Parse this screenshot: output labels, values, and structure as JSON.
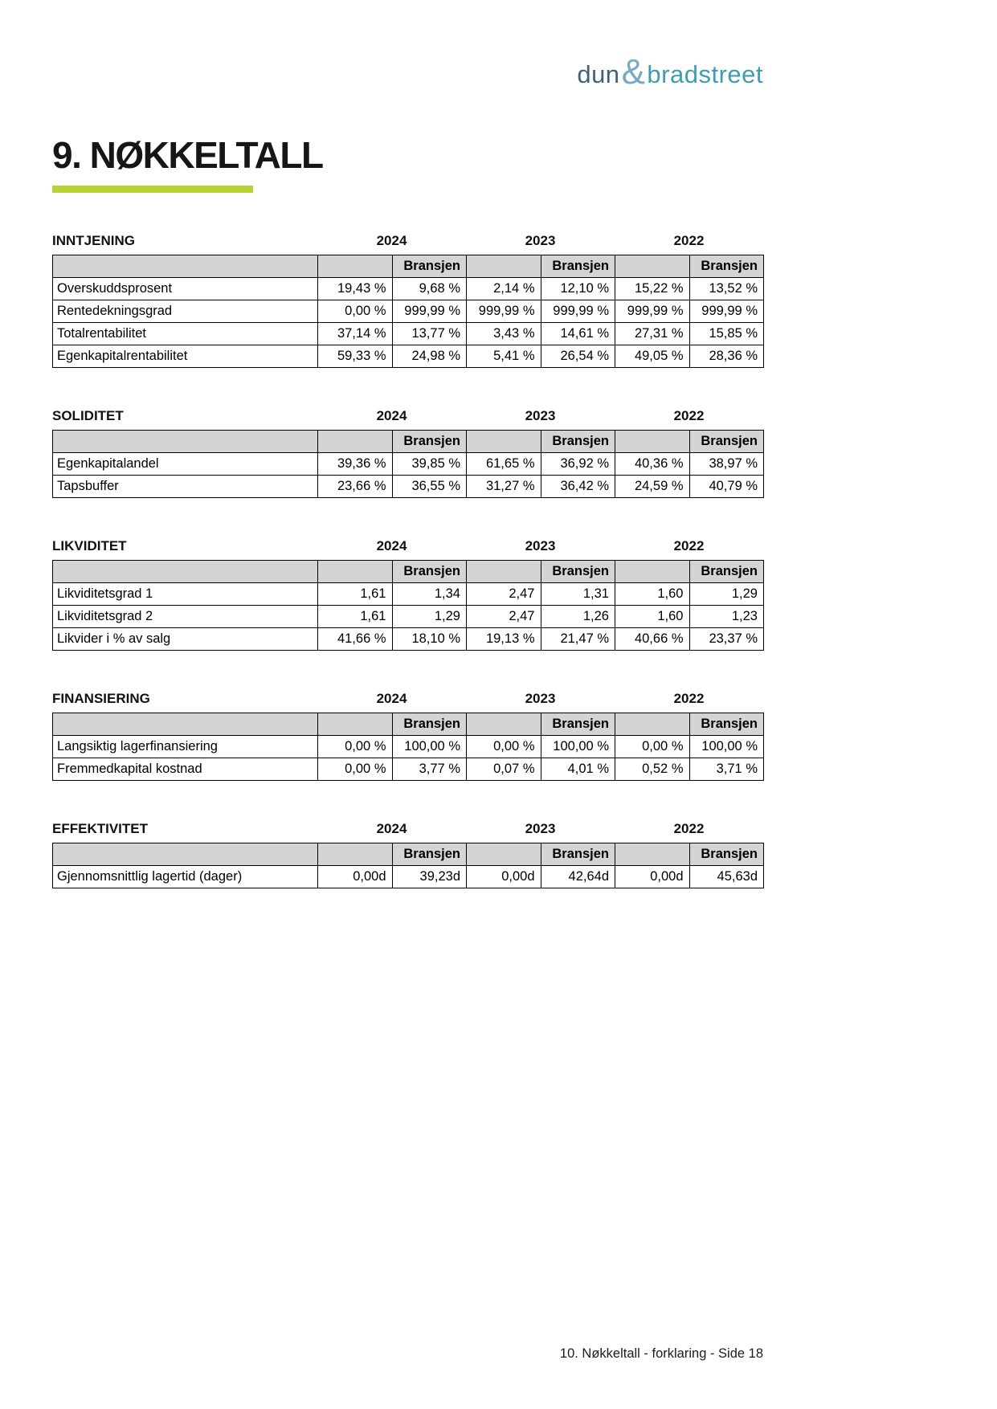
{
  "logo": {
    "dun": "dun",
    "amp": "&",
    "bradstreet": "bradstreet"
  },
  "page_title": "9. NØKKELTALL",
  "years": [
    "2024",
    "2023",
    "2022"
  ],
  "bransjen_label": "Bransjen",
  "sections": [
    {
      "title": "INNTJENING",
      "rows": [
        {
          "label": "Overskuddsprosent",
          "values": [
            "19,43 %",
            "9,68 %",
            "2,14 %",
            "12,10 %",
            "15,22 %",
            "13,52 %"
          ]
        },
        {
          "label": "Rentedekningsgrad",
          "values": [
            "0,00 %",
            "999,99 %",
            "999,99 %",
            "999,99 %",
            "999,99 %",
            "999,99 %"
          ]
        },
        {
          "label": "Totalrentabilitet",
          "values": [
            "37,14 %",
            "13,77 %",
            "3,43 %",
            "14,61 %",
            "27,31 %",
            "15,85 %"
          ]
        },
        {
          "label": "Egenkapitalrentabilitet",
          "values": [
            "59,33 %",
            "24,98 %",
            "5,41 %",
            "26,54 %",
            "49,05 %",
            "28,36 %"
          ]
        }
      ]
    },
    {
      "title": "SOLIDITET",
      "rows": [
        {
          "label": "Egenkapitalandel",
          "values": [
            "39,36 %",
            "39,85 %",
            "61,65 %",
            "36,92 %",
            "40,36 %",
            "38,97 %"
          ]
        },
        {
          "label": "Tapsbuffer",
          "values": [
            "23,66 %",
            "36,55 %",
            "31,27 %",
            "36,42 %",
            "24,59 %",
            "40,79 %"
          ]
        }
      ]
    },
    {
      "title": "LIKVIDITET",
      "rows": [
        {
          "label": "Likviditetsgrad 1",
          "values": [
            "1,61",
            "1,34",
            "2,47",
            "1,31",
            "1,60",
            "1,29"
          ]
        },
        {
          "label": "Likviditetsgrad 2",
          "values": [
            "1,61",
            "1,29",
            "2,47",
            "1,26",
            "1,60",
            "1,23"
          ]
        },
        {
          "label": "Likvider i % av salg",
          "values": [
            "41,66 %",
            "18,10 %",
            "19,13 %",
            "21,47 %",
            "40,66 %",
            "23,37 %"
          ]
        }
      ]
    },
    {
      "title": "FINANSIERING",
      "rows": [
        {
          "label": "Langsiktig lagerfinansiering",
          "values": [
            "0,00 %",
            "100,00 %",
            "0,00 %",
            "100,00 %",
            "0,00 %",
            "100,00 %"
          ]
        },
        {
          "label": "Fremmedkapital kostnad",
          "values": [
            "0,00 %",
            "3,77 %",
            "0,07 %",
            "4,01 %",
            "0,52 %",
            "3,71 %"
          ]
        }
      ]
    },
    {
      "title": "EFFEKTIVITET",
      "rows": [
        {
          "label": "Gjennomsnittlig lagertid (dager)",
          "values": [
            "0,00d",
            "39,23d",
            "0,00d",
            "42,64d",
            "0,00d",
            "45,63d"
          ]
        }
      ]
    }
  ],
  "footer": "10. Nøkkeltall - forklaring - Side 18",
  "theme": {
    "accent_green": "#b5d334",
    "header_gray": "#d4d4d4",
    "logo_dun": "#3e6379",
    "logo_amp": "#76a9c8",
    "logo_bradstreet": "#3f9cb2"
  }
}
